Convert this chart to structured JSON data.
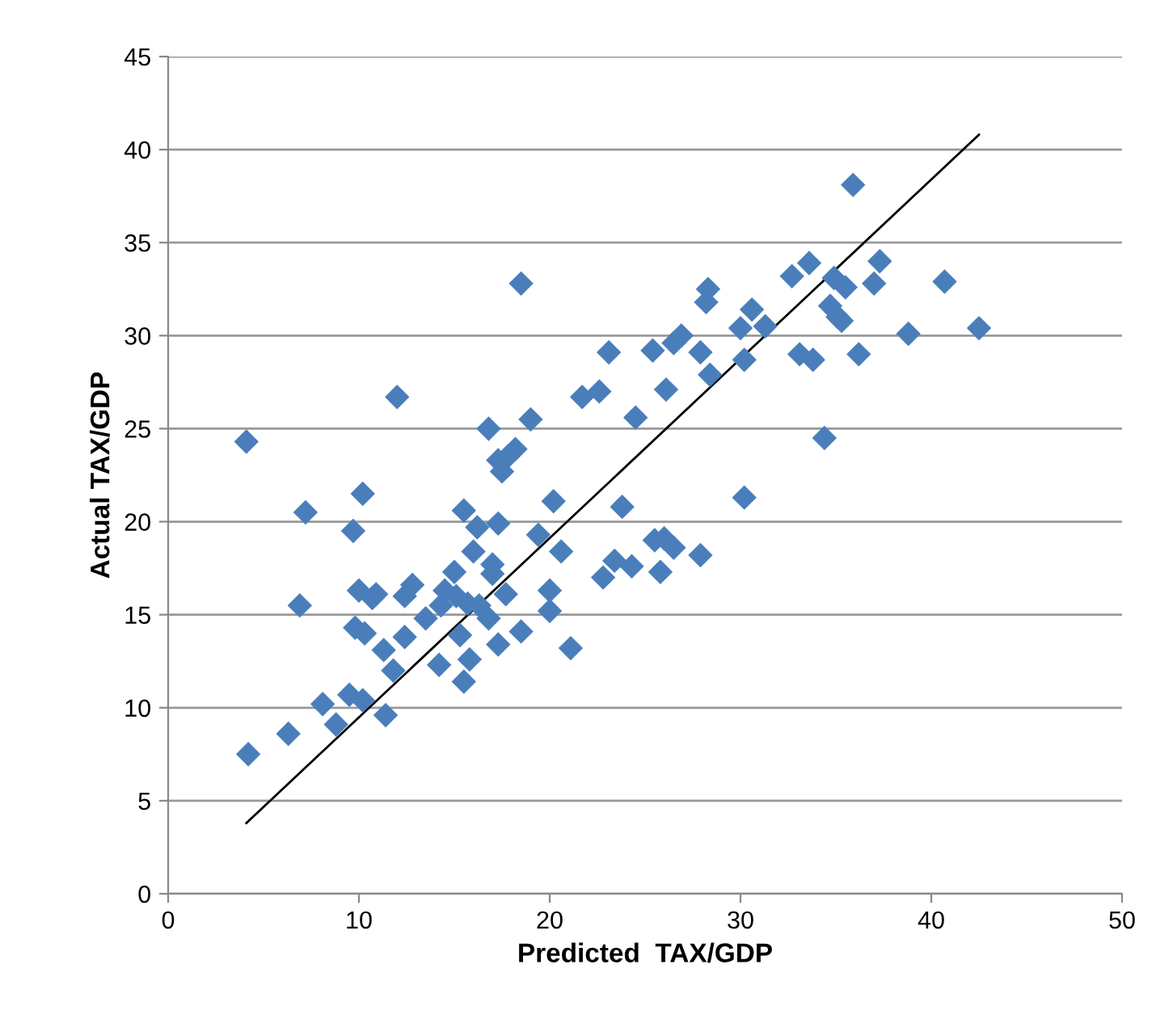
{
  "chart_data": {
    "type": "scatter",
    "xlabel": "Predicted  TAX/GDP",
    "ylabel": "Actual TAX/GDP",
    "xlim": [
      0,
      50
    ],
    "ylim": [
      0,
      45
    ],
    "xticks": [
      0,
      10,
      20,
      30,
      40,
      50
    ],
    "yticks": [
      0,
      5,
      10,
      15,
      20,
      25,
      30,
      35,
      40,
      45
    ],
    "grid": "y",
    "legend": false,
    "marker": "diamond",
    "series": [
      {
        "color": "#4a7ebb",
        "x": [
          4.1,
          4.2,
          6.3,
          6.9,
          7.2,
          8.1,
          8.8,
          9.5,
          9.7,
          9.8,
          10.0,
          10.2,
          10.2,
          10.3,
          10.7,
          10.9,
          11.3,
          11.4,
          11.8,
          12.0,
          12.4,
          12.4,
          12.8,
          13.5,
          14.2,
          14.3,
          14.5,
          15.0,
          15.1,
          15.3,
          15.5,
          15.5,
          15.7,
          15.8,
          16.0,
          16.2,
          16.3,
          16.8,
          16.8,
          17.0,
          17.0,
          17.3,
          17.3,
          17.3,
          17.5,
          17.7,
          17.8,
          18.2,
          18.5,
          18.5,
          19.0,
          19.4,
          20.0,
          20.0,
          20.2,
          20.6,
          21.1,
          21.7,
          22.6,
          22.8,
          23.1,
          23.4,
          23.8,
          24.3,
          24.5,
          25.4,
          25.5,
          25.8,
          26.0,
          26.1,
          26.5,
          26.5,
          26.9,
          27.9,
          27.9,
          28.2,
          28.3,
          28.4,
          30.0,
          30.2,
          30.2,
          30.6,
          31.3,
          32.7,
          33.1,
          33.6,
          33.8,
          34.4,
          34.7,
          34.9,
          35.1,
          35.3,
          35.5,
          35.9,
          36.2,
          37.0,
          37.3,
          38.8,
          40.7,
          42.5
        ],
        "values": [
          24.3,
          7.5,
          8.6,
          15.5,
          20.5,
          10.2,
          9.1,
          10.7,
          19.5,
          14.3,
          16.3,
          10.4,
          21.5,
          14.0,
          15.9,
          16.1,
          13.1,
          9.6,
          12.0,
          26.7,
          16.0,
          13.8,
          16.6,
          14.8,
          12.3,
          15.5,
          16.3,
          17.3,
          16.0,
          13.9,
          20.6,
          11.4,
          15.6,
          12.6,
          18.4,
          19.7,
          15.5,
          25.0,
          14.8,
          17.7,
          17.2,
          13.4,
          19.9,
          23.3,
          22.7,
          16.1,
          23.5,
          23.9,
          14.1,
          32.8,
          25.5,
          19.3,
          15.2,
          16.3,
          21.1,
          18.4,
          13.2,
          26.7,
          27.0,
          17.0,
          29.1,
          17.9,
          20.8,
          17.6,
          25.6,
          29.2,
          19.0,
          17.3,
          19.1,
          27.1,
          29.6,
          18.6,
          30.0,
          29.1,
          18.2,
          31.8,
          32.5,
          27.9,
          30.4,
          21.3,
          28.7,
          31.4,
          30.5,
          33.2,
          29.0,
          33.9,
          28.7,
          24.5,
          31.6,
          33.1,
          31.0,
          30.8,
          32.6,
          38.1,
          29.0,
          32.8,
          34.0,
          30.1,
          32.9,
          30.4
        ]
      },
      {
        "type": "line",
        "color": "#000000",
        "marker": "none",
        "line_style": "solid",
        "x": [
          4.1,
          42.5
        ],
        "values": [
          3.8,
          40.8
        ]
      }
    ]
  }
}
